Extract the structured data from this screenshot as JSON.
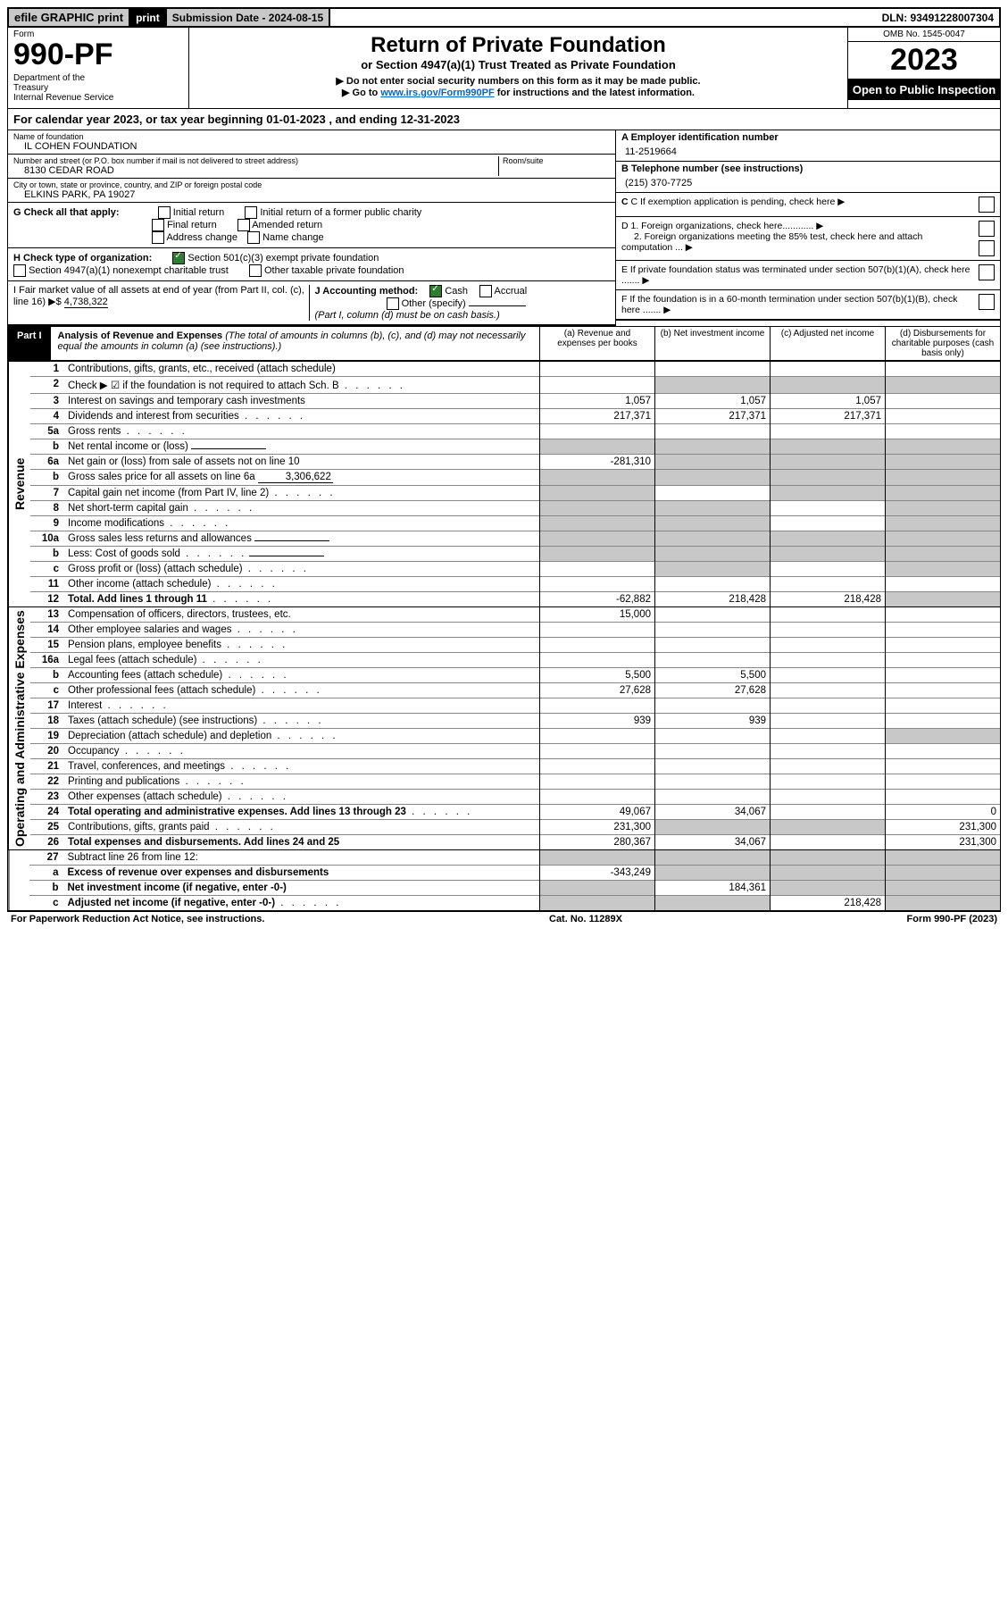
{
  "topbar": {
    "efile": "efile GRAPHIC print",
    "subdate": "Submission Date - 2024-08-15",
    "dln": "DLN: 93491228007304"
  },
  "header": {
    "form_label": "Form",
    "form_no": "990-PF",
    "dept": "Department of the Treasury\nInternal Revenue Service",
    "title": "Return of Private Foundation",
    "sub1": "or Section 4947(a)(1) Trust Treated as Private Foundation",
    "sub2": "▶ Do not enter social security numbers on this form as it may be made public.",
    "sub3_pre": "▶ Go to ",
    "sub3_link": "www.irs.gov/Form990PF",
    "sub3_post": " for instructions and the latest information.",
    "omb": "OMB No. 1545-0047",
    "year": "2023",
    "open": "Open to Public Inspection"
  },
  "period": "For calendar year 2023, or tax year beginning 01-01-2023                               , and ending 12-31-2023",
  "name_block": {
    "lbl": "Name of foundation",
    "val": "IL COHEN FOUNDATION"
  },
  "addr_block": {
    "lbl": "Number and street (or P.O. box number if mail is not delivered to street address)",
    "val": "8130 CEDAR ROAD",
    "room_lbl": "Room/suite"
  },
  "city_block": {
    "lbl": "City or town, state or province, country, and ZIP or foreign postal code",
    "val": "ELKINS PARK, PA  19027"
  },
  "ein": {
    "lbl": "A Employer identification number",
    "val": "11-2519664"
  },
  "phone": {
    "lbl": "B Telephone number (see instructions)",
    "val": "(215) 370-7725"
  },
  "c_exempt": "C If exemption application is pending, check here",
  "d1": "D 1. Foreign organizations, check here............",
  "d2": "2. Foreign organizations meeting the 85% test, check here and attach computation ...",
  "e": "E  If private foundation status was terminated under section 507(b)(1)(A), check here .......",
  "f": "F  If the foundation is in a 60-month termination under section 507(b)(1)(B), check here .......",
  "g": {
    "label": "G Check all that apply:",
    "opts": [
      "Initial return",
      "Initial return of a former public charity",
      "Final return",
      "Amended return",
      "Address change",
      "Name change"
    ]
  },
  "h": {
    "label": "H Check type of organization:",
    "opt1": "Section 501(c)(3) exempt private foundation",
    "opt2": "Section 4947(a)(1) nonexempt charitable trust",
    "opt3": "Other taxable private foundation"
  },
  "i": {
    "label": "I Fair market value of all assets at end of year (from Part II, col. (c), line 16) ▶$",
    "val": "4,738,322"
  },
  "j": {
    "label": "J Accounting method:",
    "cash": "Cash",
    "accrual": "Accrual",
    "other": "Other (specify)",
    "note": "(Part I, column (d) must be on cash basis.)"
  },
  "part1": {
    "label": "Part I",
    "title_bold": "Analysis of Revenue and Expenses ",
    "title_rest": "(The total of amounts in columns (b), (c), and (d) may not necessarily equal the amounts in column (a) (see instructions).)",
    "col_a": "(a)   Revenue and expenses per books",
    "col_b": "(b)   Net investment income",
    "col_c": "(c)   Adjusted net income",
    "col_d": "(d)   Disbursements for charitable purposes (cash basis only)"
  },
  "side_rev": "Revenue",
  "side_exp": "Operating and Administrative Expenses",
  "rows_rev": [
    {
      "n": "1",
      "t": "Contributions, gifts, grants, etc., received (attach schedule)",
      "a": "",
      "b": "",
      "c": "",
      "d": ""
    },
    {
      "n": "2",
      "t": "Check ▶ ☑ if the foundation is not required to attach Sch. B",
      "dotted": true,
      "a": "",
      "b": "",
      "c": "",
      "d": "",
      "shade_b": true,
      "shade_c": true,
      "shade_d": true
    },
    {
      "n": "3",
      "t": "Interest on savings and temporary cash investments",
      "a": "1,057",
      "b": "1,057",
      "c": "1,057",
      "d": ""
    },
    {
      "n": "4",
      "t": "Dividends and interest from securities",
      "dotted": true,
      "a": "217,371",
      "b": "217,371",
      "c": "217,371",
      "d": ""
    },
    {
      "n": "5a",
      "t": "Gross rents",
      "dotted": true,
      "a": "",
      "b": "",
      "c": "",
      "d": ""
    },
    {
      "n": "b",
      "t": "Net rental income or (loss)",
      "fill": "",
      "a": "",
      "b": "",
      "c": "",
      "d": "",
      "shade_all": true
    },
    {
      "n": "6a",
      "t": "Net gain or (loss) from sale of assets not on line 10",
      "a": "-281,310",
      "b": "",
      "c": "",
      "d": "",
      "shade_bcd": true
    },
    {
      "n": "b",
      "t": "Gross sales price for all assets on line 6a",
      "fill": "3,306,622",
      "shade_all": true
    },
    {
      "n": "7",
      "t": "Capital gain net income (from Part IV, line 2)",
      "dotted": true,
      "a": "",
      "b": "",
      "c": "",
      "d": "",
      "shade_a": true,
      "shade_c": true,
      "shade_d": true
    },
    {
      "n": "8",
      "t": "Net short-term capital gain",
      "dotted": true,
      "shade_a": true,
      "shade_b": true,
      "shade_d": true
    },
    {
      "n": "9",
      "t": "Income modifications",
      "dotted": true,
      "shade_a": true,
      "shade_b": true,
      "shade_d": true
    },
    {
      "n": "10a",
      "t": "Gross sales less returns and allowances",
      "fill": "",
      "shade_all": true
    },
    {
      "n": "b",
      "t": "Less: Cost of goods sold",
      "dotted": true,
      "fill": "",
      "shade_all": true
    },
    {
      "n": "c",
      "t": "Gross profit or (loss) (attach schedule)",
      "dotted": true,
      "shade_b": true,
      "shade_d": true
    },
    {
      "n": "11",
      "t": "Other income (attach schedule)",
      "dotted": true
    },
    {
      "n": "12",
      "t": "Total. Add lines 1 through 11",
      "dotted": true,
      "bold": true,
      "a": "-62,882",
      "b": "218,428",
      "c": "218,428",
      "shade_d": true
    }
  ],
  "rows_exp": [
    {
      "n": "13",
      "t": "Compensation of officers, directors, trustees, etc.",
      "a": "15,000"
    },
    {
      "n": "14",
      "t": "Other employee salaries and wages",
      "dotted": true
    },
    {
      "n": "15",
      "t": "Pension plans, employee benefits",
      "dotted": true
    },
    {
      "n": "16a",
      "t": "Legal fees (attach schedule)",
      "dotted": true
    },
    {
      "n": "b",
      "t": "Accounting fees (attach schedule)",
      "dotted": true,
      "a": "5,500",
      "b": "5,500"
    },
    {
      "n": "c",
      "t": "Other professional fees (attach schedule)",
      "dotted": true,
      "a": "27,628",
      "b": "27,628"
    },
    {
      "n": "17",
      "t": "Interest",
      "dotted": true
    },
    {
      "n": "18",
      "t": "Taxes (attach schedule) (see instructions)",
      "dotted": true,
      "a": "939",
      "b": "939"
    },
    {
      "n": "19",
      "t": "Depreciation (attach schedule) and depletion",
      "dotted": true,
      "shade_d": true
    },
    {
      "n": "20",
      "t": "Occupancy",
      "dotted": true
    },
    {
      "n": "21",
      "t": "Travel, conferences, and meetings",
      "dotted": true
    },
    {
      "n": "22",
      "t": "Printing and publications",
      "dotted": true
    },
    {
      "n": "23",
      "t": "Other expenses (attach schedule)",
      "dotted": true
    },
    {
      "n": "24",
      "t": "Total operating and administrative expenses. Add lines 13 through 23",
      "dotted": true,
      "bold": true,
      "a": "49,067",
      "b": "34,067",
      "c": "",
      "d": "0"
    },
    {
      "n": "25",
      "t": "Contributions, gifts, grants paid",
      "dotted": true,
      "a": "231,300",
      "shade_b": true,
      "shade_c": true,
      "d": "231,300"
    },
    {
      "n": "26",
      "t": "Total expenses and disbursements. Add lines 24 and 25",
      "bold": true,
      "a": "280,367",
      "b": "34,067",
      "c": "",
      "d": "231,300"
    }
  ],
  "rows_net": [
    {
      "n": "27",
      "t": "Subtract line 26 from line 12:",
      "bold": false,
      "shade_all": true
    },
    {
      "n": "a",
      "t": "Excess of revenue over expenses and disbursements",
      "bold": true,
      "a": "-343,249",
      "shade_b": true,
      "shade_c": true,
      "shade_d": true
    },
    {
      "n": "b",
      "t": "Net investment income (if negative, enter -0-)",
      "bold": true,
      "shade_a": true,
      "b": "184,361",
      "shade_c": true,
      "shade_d": true
    },
    {
      "n": "c",
      "t": "Adjusted net income (if negative, enter -0-)",
      "dotted": true,
      "bold": true,
      "shade_a": true,
      "shade_b": true,
      "c": "218,428",
      "shade_d": true
    }
  ],
  "footer": {
    "left": "For Paperwork Reduction Act Notice, see instructions.",
    "mid": "Cat. No. 11289X",
    "right": "Form 990-PF (2023)"
  }
}
